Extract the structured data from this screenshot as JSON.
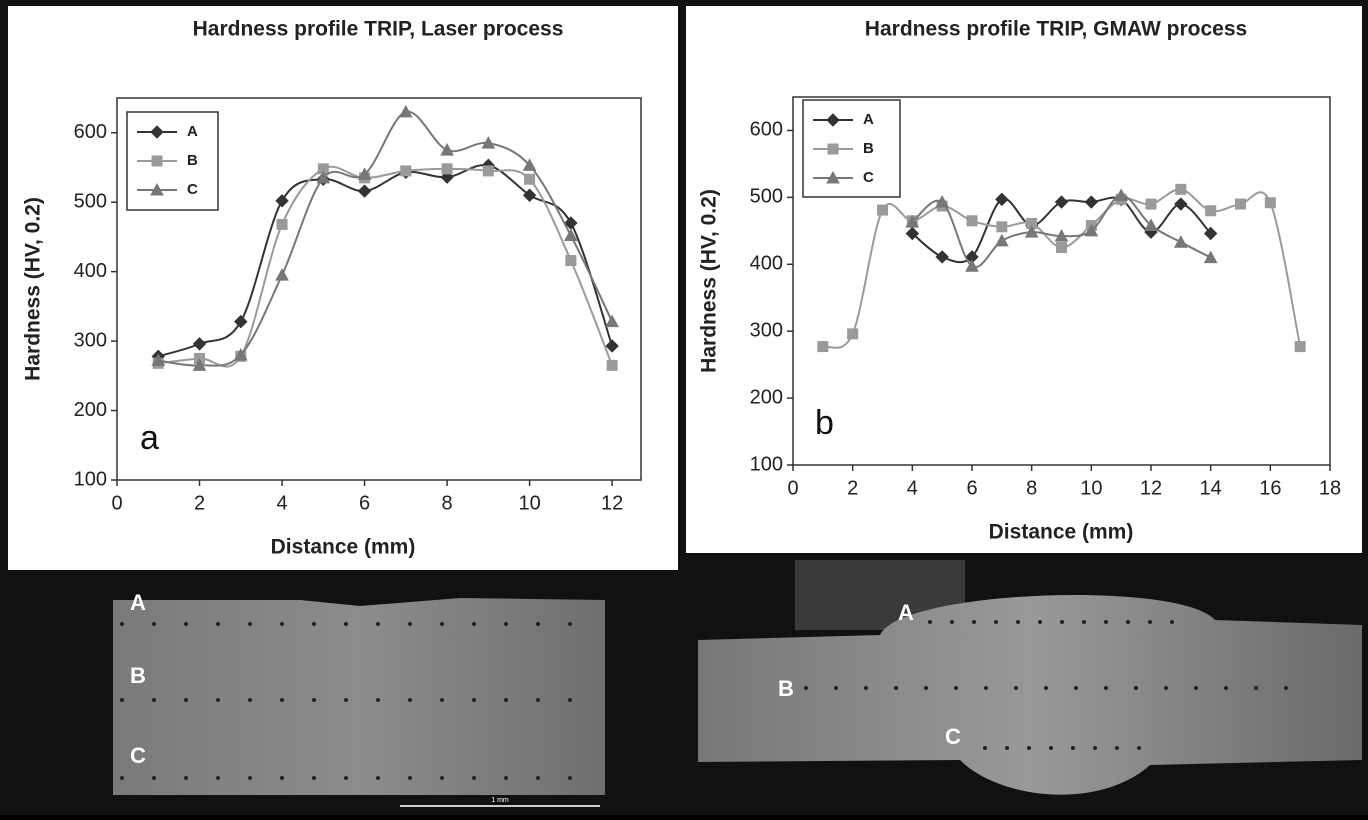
{
  "chart_data": [
    {
      "type": "line",
      "title": "Hardness profile TRIP, Laser process",
      "xlabel": "Distance (mm)",
      "ylabel": "Hardness (HV, 0.2)",
      "panel_label": "a",
      "xlim": [
        0,
        12.7
      ],
      "ylim": [
        100,
        650
      ],
      "xticks": [
        0,
        2,
        4,
        6,
        8,
        10,
        12
      ],
      "yticks": [
        100,
        200,
        300,
        400,
        500,
        600
      ],
      "legend": "upper left",
      "series": [
        {
          "name": "A",
          "color": "#333333",
          "marker": "diamond",
          "x": [
            1,
            2,
            3,
            4,
            5,
            6,
            7,
            8,
            9,
            10,
            11,
            12
          ],
          "values": [
            278,
            296,
            328,
            502,
            533,
            516,
            543,
            536,
            553,
            510,
            470,
            293
          ]
        },
        {
          "name": "B",
          "color": "#9a9a9a",
          "marker": "square",
          "x": [
            1,
            2,
            3,
            4,
            5,
            6,
            7,
            8,
            9,
            10,
            11,
            12
          ],
          "values": [
            268,
            275,
            278,
            468,
            548,
            535,
            545,
            548,
            545,
            533,
            416,
            265
          ]
        },
        {
          "name": "C",
          "color": "#777777",
          "marker": "triangle",
          "x": [
            1,
            2,
            3,
            4,
            5,
            6,
            7,
            8,
            9,
            10,
            11,
            12
          ],
          "values": [
            272,
            265,
            280,
            395,
            535,
            540,
            630,
            575,
            585,
            553,
            452,
            328
          ]
        }
      ]
    },
    {
      "type": "line",
      "title": "Hardness profile TRIP, GMAW process",
      "xlabel": "Distance (mm)",
      "ylabel": "Hardness (HV, 0.2)",
      "panel_label": "b",
      "xlim": [
        0,
        18
      ],
      "ylim": [
        100,
        650
      ],
      "xticks": [
        0,
        2,
        4,
        6,
        8,
        10,
        12,
        14,
        16,
        18
      ],
      "yticks": [
        100,
        200,
        300,
        400,
        500,
        600
      ],
      "legend": "upper left",
      "series": [
        {
          "name": "A",
          "color": "#333333",
          "marker": "diamond",
          "x": [
            4,
            5,
            6,
            7,
            8,
            9,
            10,
            11,
            12,
            13,
            14
          ],
          "values": [
            446,
            411,
            411,
            497,
            458,
            493,
            493,
            497,
            448,
            490,
            446
          ]
        },
        {
          "name": "B",
          "color": "#9a9a9a",
          "marker": "square",
          "x": [
            1,
            2,
            3,
            4,
            5,
            6,
            7,
            8,
            9,
            10,
            11,
            12,
            13,
            14,
            15,
            16,
            17
          ],
          "values": [
            277,
            296,
            481,
            465,
            487,
            465,
            456,
            461,
            425,
            458,
            497,
            490,
            512,
            480,
            490,
            492,
            277
          ]
        },
        {
          "name": "C",
          "color": "#777777",
          "marker": "triangle",
          "x": [
            4,
            5,
            6,
            7,
            8,
            9,
            10,
            11,
            12,
            13,
            14
          ],
          "values": [
            463,
            493,
            397,
            435,
            448,
            442,
            450,
            503,
            458,
            433,
            410
          ]
        }
      ]
    }
  ],
  "micrographs": [
    {
      "labels": [
        "A",
        "B",
        "C"
      ],
      "scale_bar": "1 mm"
    },
    {
      "labels": [
        "A",
        "B",
        "C"
      ]
    }
  ]
}
